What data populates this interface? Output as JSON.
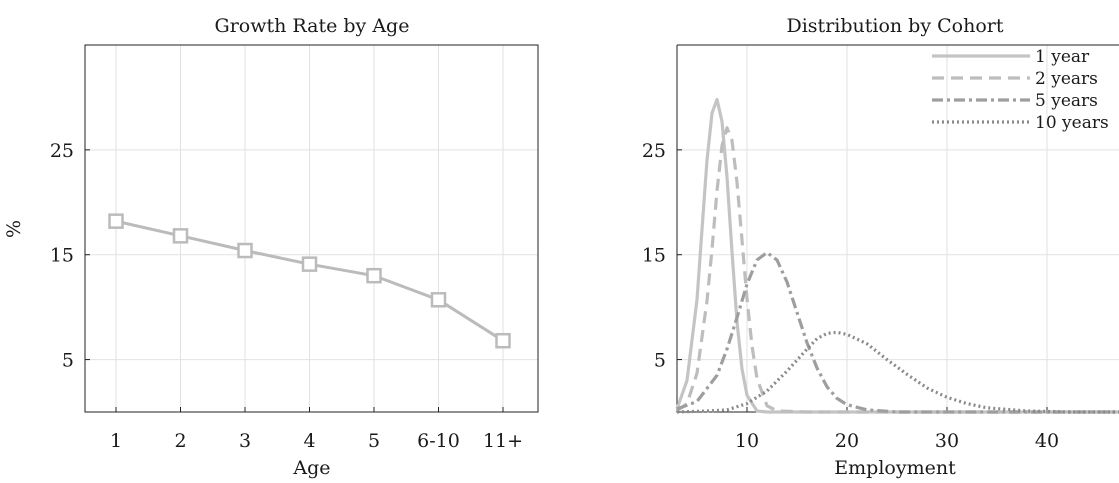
{
  "chart_data": [
    {
      "type": "line",
      "title": "Growth Rate by Age",
      "xlabel": "Age",
      "ylabel": "%",
      "categories": [
        "1",
        "2",
        "3",
        "4",
        "5",
        "6-10",
        "11+"
      ],
      "series": [
        {
          "values": [
            18.2,
            16.8,
            15.4,
            14.1,
            13.0,
            10.7,
            6.8
          ],
          "marker": "square",
          "color": "#bbbbbb"
        }
      ],
      "ylim": [
        0,
        35
      ],
      "yticks": [
        5,
        15,
        25
      ],
      "grid": true
    },
    {
      "type": "line",
      "title": "Distribution by Cohort",
      "xlabel": "Employment",
      "ylabel": "",
      "xlim": [
        3,
        50
      ],
      "ylim": [
        0,
        35
      ],
      "xticks": [
        10,
        20,
        30,
        40
      ],
      "yticks": [
        5,
        15,
        25
      ],
      "grid": true,
      "legend_position": "top-right",
      "series": [
        {
          "name": "1 year",
          "style": "solid",
          "color": "#c4c4c4",
          "x": [
            3,
            4,
            5,
            5.5,
            6,
            6.5,
            7,
            7.5,
            8,
            8.5,
            9,
            9.5,
            10,
            11,
            12,
            15,
            50
          ],
          "y": [
            0.3,
            3,
            10.7,
            17.4,
            24.0,
            28.5,
            29.8,
            27.7,
            22.4,
            15.3,
            8.6,
            4.1,
            1.6,
            0.1,
            0,
            0,
            0
          ]
        },
        {
          "name": "2 years",
          "style": "dashed",
          "color": "#bdbdbd",
          "x": [
            3,
            4,
            5,
            6,
            6.5,
            7,
            7.5,
            8,
            8.5,
            9,
            9.5,
            10,
            10.5,
            11,
            12,
            13,
            16,
            50
          ],
          "y": [
            0.1,
            0.8,
            3.7,
            10.6,
            15.5,
            21.1,
            25.4,
            27.1,
            25.9,
            21.9,
            16.4,
            10.8,
            6.3,
            3.2,
            0.6,
            0.1,
            0,
            0
          ]
        },
        {
          "name": "5 years",
          "style": "dashdot",
          "color": "#9e9e9e",
          "x": [
            3,
            5,
            7,
            8,
            9,
            10,
            11,
            12,
            13,
            14,
            15,
            16,
            17,
            18,
            19,
            20,
            22,
            25,
            30,
            50
          ],
          "y": [
            0.3,
            1.0,
            3.5,
            6.0,
            9.0,
            12.2,
            14.5,
            15.2,
            14.5,
            12.4,
            9.5,
            6.6,
            4.2,
            2.4,
            1.3,
            0.7,
            0.2,
            0,
            0,
            0
          ]
        },
        {
          "name": "10 years",
          "style": "dotted",
          "color": "#8a8a8a",
          "x": [
            3,
            6,
            8,
            10,
            12,
            14,
            16,
            17,
            18,
            19,
            20,
            22,
            24,
            26,
            28,
            30,
            32,
            34,
            38,
            42,
            46,
            50
          ],
          "y": [
            0,
            0.1,
            0.2,
            0.8,
            2.0,
            3.9,
            6.0,
            7.0,
            7.5,
            7.6,
            7.4,
            6.5,
            5.0,
            3.6,
            2.3,
            1.4,
            0.8,
            0.4,
            0.1,
            0,
            0,
            0
          ]
        }
      ]
    }
  ]
}
